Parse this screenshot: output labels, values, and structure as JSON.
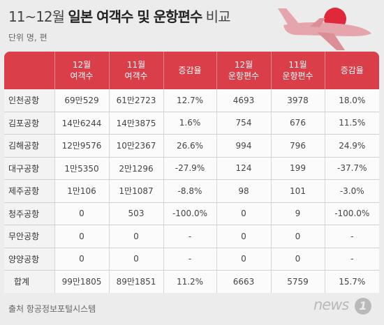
{
  "title": {
    "part1": "11~12월 ",
    "part2": "일본 여객수 및 운항편수",
    "part3": " 비교"
  },
  "unit": "단위 명, 편",
  "table": {
    "headers": [
      [
        "12월",
        "여객수"
      ],
      [
        "11월",
        "여객수"
      ],
      [
        "증감율"
      ],
      [
        "12월",
        "운항편수"
      ],
      [
        "11월",
        "운항편수"
      ],
      [
        "증감율"
      ]
    ],
    "rows": [
      {
        "airport": "인천공항",
        "values": [
          "69만529",
          "61만2723",
          "12.7%",
          "4693",
          "3978",
          "18.0%"
        ]
      },
      {
        "airport": "김포공항",
        "values": [
          "14만6244",
          "14만3875",
          "1.6%",
          "754",
          "676",
          "11.5%"
        ]
      },
      {
        "airport": "김해공항",
        "values": [
          "12만9576",
          "10만2367",
          "26.6%",
          "994",
          "796",
          "24.9%"
        ]
      },
      {
        "airport": "대구공항",
        "values": [
          "1만5350",
          "2만1296",
          "-27.9%",
          "124",
          "199",
          "-37.7%"
        ]
      },
      {
        "airport": "제주공항",
        "values": [
          "1만106",
          "1만1087",
          "-8.8%",
          "98",
          "101",
          "-3.0%"
        ]
      },
      {
        "airport": "청주공항",
        "values": [
          "0",
          "503",
          "-100.0%",
          "0",
          "9",
          "-100.0%"
        ]
      },
      {
        "airport": "무안공항",
        "values": [
          "0",
          "0",
          "-",
          "0",
          "0",
          "-"
        ]
      },
      {
        "airport": "양양공항",
        "values": [
          "0",
          "0",
          "-",
          "0",
          "0",
          "-"
        ]
      }
    ],
    "total": {
      "label": "합계",
      "values": [
        "99만1805",
        "89만1851",
        "11.2%",
        "6663",
        "5759",
        "15.7%"
      ]
    }
  },
  "source": "출처  항공정보포털시스템",
  "logo": {
    "text": "news",
    "badge": "1"
  },
  "colors": {
    "header": "#d93e49",
    "sun": "#e0283a",
    "plane": "#e6a5ac",
    "background": "#ececec"
  },
  "icons": {
    "illustration": "airplane-icon"
  }
}
